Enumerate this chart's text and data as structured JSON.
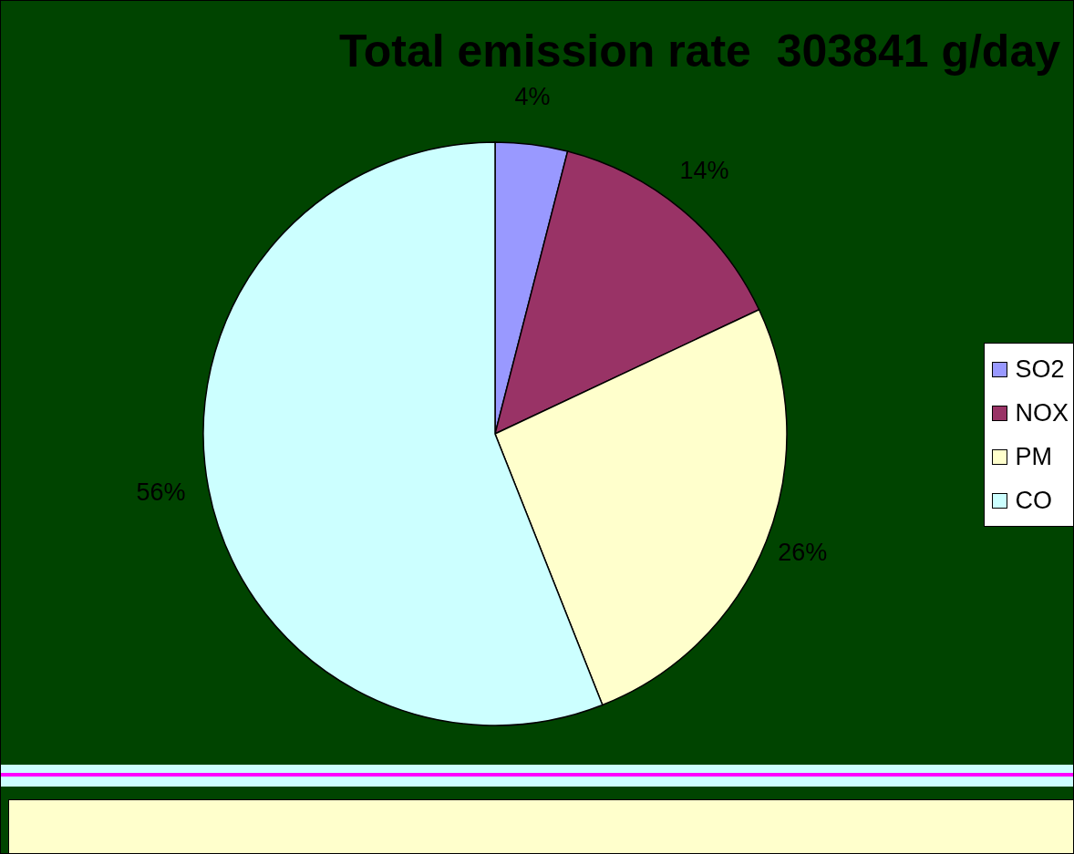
{
  "chart_data": {
    "type": "pie",
    "title": "Total emission rate  303841 g/day",
    "categories": [
      "SO2",
      "NOX",
      "PM",
      "CO"
    ],
    "values": [
      4,
      14,
      26,
      56
    ],
    "colors": [
      "#9999ff",
      "#993366",
      "#ffffcc",
      "#ccffff"
    ],
    "value_labels": [
      "4%",
      "14%",
      "26%",
      "56%"
    ],
    "legend": "right"
  }
}
